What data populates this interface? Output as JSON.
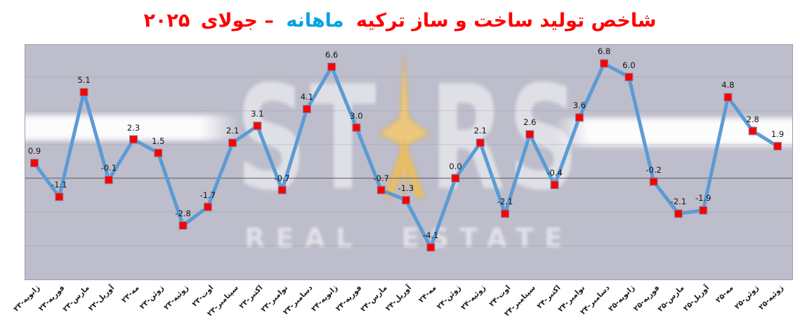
{
  "title": {
    "part1_red": "شاخص تولید ساخت و ساز ترکیه",
    "part2_blue": "ماهانه",
    "part3_red": "– جولای",
    "year": "۲۰۲۵",
    "red_color": "#FF0000",
    "blue_color": "#00A3E3"
  },
  "watermark": {
    "brand_left": "ST",
    "brand_right": "RS",
    "subtitle": "REAL ESTATE",
    "star_color": "#EBC87C",
    "star_edge_color": "#D8A94E"
  },
  "chart_data": {
    "type": "line",
    "title": "شاخص تولید ساخت و ساز ترکیه ماهانه – جولای ۲۰۲۵",
    "categories": [
      "ژانویه-۲۳",
      "فوریه-۲۳",
      "مارس-۲۳",
      "آوریل-۲۳",
      "مه-۲۳",
      "ژوئن-۲۳",
      "ژوئیه-۲۳",
      "اوت-۲۳",
      "سپتامبر-۲۳",
      "اکتبر-۲۳",
      "نوامبر-۲۳",
      "دسامبر-۲۳",
      "ژانویه-۲۴",
      "فوریه-۲۴",
      "مارس-۲۴",
      "آوریل-۲۴",
      "مه-۲۴",
      "ژوئن-۲۴",
      "ژوئیه-۲۴",
      "اوت-۲۴",
      "سپتامبر-۲۴",
      "اکتبر-۲۴",
      "نوامبر-۲۴",
      "دسامبر-۲۴",
      "ژانویه-۲۵",
      "فوریه-۲۵",
      "مارس-۲۵",
      "آوریل-۲۵",
      "مه-۲۵",
      "ژوئن-۲۵",
      "ژوئیه-۲۵"
    ],
    "values": [
      0.9,
      -1.1,
      5.1,
      -0.1,
      2.3,
      1.5,
      -2.8,
      -1.7,
      2.1,
      3.1,
      -0.7,
      4.1,
      6.6,
      3.0,
      -0.7,
      -1.3,
      -4.1,
      0.0,
      2.1,
      -2.1,
      2.6,
      -0.4,
      3.6,
      6.8,
      6.0,
      -0.2,
      -2.1,
      -1.9,
      4.8,
      2.8,
      1.9
    ],
    "xlabel": "",
    "ylabel": "",
    "ylim": [
      -6.0,
      7.9
    ],
    "grid_step": 2,
    "gridlines": [
      6,
      4,
      2,
      0,
      -2,
      -4
    ],
    "data_labels": true,
    "legend": "none",
    "line_color": "#5B9BD5",
    "marker_fill": "#FE0000",
    "marker_stroke": "#6F94B8",
    "plot_bg": "#BDBDCB",
    "grid_color": "#8F8FA5",
    "zero_line_color": "#5A5A62"
  }
}
